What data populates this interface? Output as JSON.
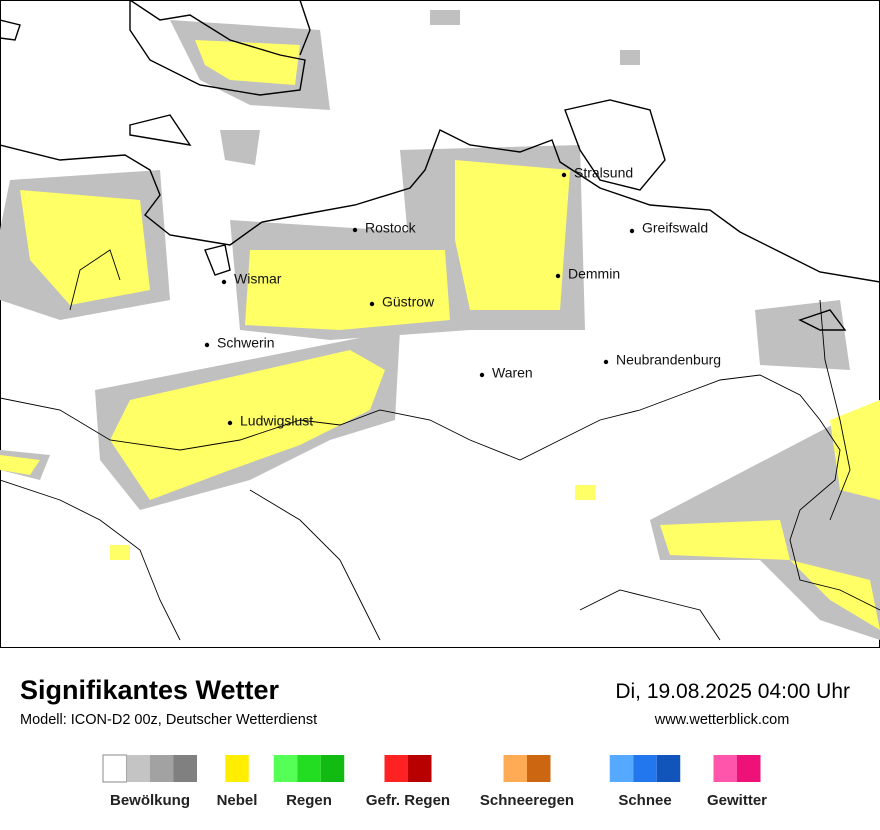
{
  "map": {
    "cities": [
      "Stralsund",
      "Rostock",
      "Greifswald",
      "Wismar",
      "Demmin",
      "Güstrow",
      "Schwerin",
      "Neubrandenburg",
      "Waren",
      "Ludwigslust"
    ]
  },
  "footer": {
    "title": "Signifikantes Wetter",
    "subtitle": "Modell: ICON-D2 00z, Deutscher Wetterdienst",
    "datetime": "Di, 19.08.2025 04:00 Uhr",
    "website": "www.wetterblick.com"
  },
  "legend": [
    {
      "label": "Bewölkung",
      "colors": [
        "#ffffff",
        "#c4c4c4",
        "#a2a2a2",
        "#808080"
      ]
    },
    {
      "label": "Nebel",
      "colors": [
        "#ffee00"
      ]
    },
    {
      "label": "Regen",
      "colors": [
        "#55ff55",
        "#22dd22",
        "#11bb11"
      ]
    },
    {
      "label": "Gefr. Regen",
      "colors": [
        "#ff2222",
        "#b80000"
      ]
    },
    {
      "label": "Schneeregen",
      "colors": [
        "#ffaa55",
        "#cc6611"
      ]
    },
    {
      "label": "Schnee",
      "colors": [
        "#55aaff",
        "#2277ee",
        "#1155bb"
      ]
    },
    {
      "label": "Gewitter",
      "colors": [
        "#ff55aa",
        "#ee1177"
      ]
    }
  ]
}
